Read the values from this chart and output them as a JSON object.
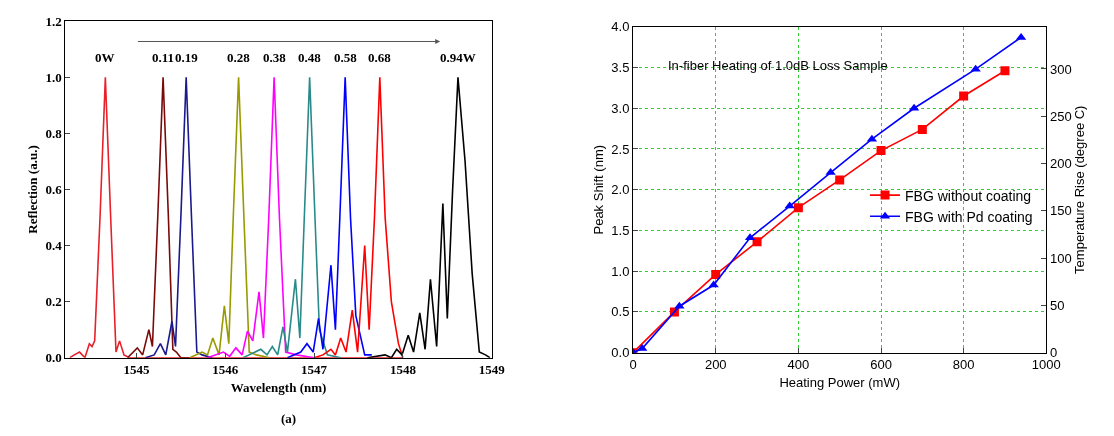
{
  "chart_data": [
    {
      "type": "line",
      "xlabel": "Wavelength (nm)",
      "ylabel": "Reflection (a.u.)",
      "xlim": [
        1544.2,
        1549
      ],
      "xticks": [
        1545,
        1546,
        1547,
        1548,
        1549
      ],
      "ylim": [
        0,
        1.2
      ],
      "yticks": [
        {
          "value": 0,
          "label": "0.0"
        },
        0.2,
        0.4,
        0.6,
        0.8,
        {
          "value": 1,
          "label": "1.0"
        },
        1.2
      ],
      "grid": false,
      "legend": false,
      "marker": "none",
      "line_style": "solid",
      "annotations": [
        {
          "text": "0W",
          "x": 1544.65,
          "y": 1.0
        },
        {
          "text": "0.11",
          "x": 1545.3,
          "y": 1.0
        },
        {
          "text": "0.19",
          "x": 1545.56,
          "y": 1.0
        },
        {
          "text": "0.28",
          "x": 1546.15,
          "y": 1.0
        },
        {
          "text": "0.38",
          "x": 1546.55,
          "y": 1.0
        },
        {
          "text": "0.48",
          "x": 1546.95,
          "y": 1.0
        },
        {
          "text": "0.58",
          "x": 1547.35,
          "y": 1.0
        },
        {
          "text": "0.68",
          "x": 1547.74,
          "y": 1.0
        },
        {
          "text": "0.94W",
          "x": 1548.62,
          "y": 1.0
        },
        "(a)"
      ],
      "series": [
        {
          "color": "#e8202a",
          "x": [
            1544.25,
            1544.3,
            1544.36,
            1544.42,
            1544.47,
            1544.5,
            1544.53,
            1544.59,
            1544.65,
            1544.71,
            1544.77,
            1544.81,
            1544.86,
            1544.92,
            1545.0,
            1548.0
          ],
          "values": [
            0,
            0.01,
            0.02,
            0,
            0.05,
            0.04,
            0.06,
            0.5,
            1.0,
            0.5,
            0.02,
            0.06,
            0.01,
            0,
            0,
            0
          ]
        },
        {
          "color": "#7a0a0a",
          "x": [
            1544.9,
            1545.01,
            1545.07,
            1545.14,
            1545.18,
            1545.24,
            1545.3,
            1545.36,
            1545.41,
            1545.45,
            1545.5,
            1545.6
          ],
          "values": [
            0,
            0.035,
            0.01,
            0.1,
            0.04,
            0.5,
            1.0,
            0.5,
            0.03,
            0.02,
            0,
            0
          ]
        },
        {
          "color": "#1a1a8c",
          "x": [
            1545.1,
            1545.2,
            1545.27,
            1545.33,
            1545.4,
            1545.44,
            1545.5,
            1545.56,
            1545.62,
            1545.68,
            1545.74,
            1545.85
          ],
          "values": [
            0,
            0.01,
            0.05,
            0.01,
            0.13,
            0.04,
            0.5,
            1.0,
            0.5,
            0.02,
            0.01,
            0
          ]
        },
        {
          "color": "#999900",
          "x": [
            1545.6,
            1545.74,
            1545.8,
            1545.86,
            1545.93,
            1545.99,
            1546.04,
            1546.09,
            1546.15,
            1546.21,
            1546.27,
            1546.35,
            1546.5
          ],
          "values": [
            0,
            0.02,
            0.01,
            0.07,
            0.01,
            0.185,
            0.05,
            0.5,
            1.0,
            0.5,
            0.02,
            0.01,
            0
          ]
        },
        {
          "color": "#ff00ff",
          "x": [
            1545.8,
            1545.98,
            1546.05,
            1546.12,
            1546.19,
            1546.25,
            1546.31,
            1546.38,
            1546.43,
            1546.49,
            1546.55,
            1546.61,
            1546.68,
            1546.8,
            1547.0
          ],
          "values": [
            0,
            0.02,
            0.005,
            0.035,
            0.01,
            0.095,
            0.06,
            0.235,
            0.07,
            0.5,
            1.0,
            0.5,
            0.02,
            0.01,
            0
          ]
        },
        {
          "color": "#2a8a8a",
          "x": [
            1546.2,
            1546.4,
            1546.47,
            1546.53,
            1546.59,
            1546.65,
            1546.7,
            1546.79,
            1546.84,
            1546.89,
            1546.95,
            1547.01,
            1547.06,
            1547.15,
            1547.3
          ],
          "values": [
            0,
            0.03,
            0.01,
            0.04,
            0.01,
            0.11,
            0.02,
            0.28,
            0.07,
            0.5,
            1.0,
            0.5,
            0.1,
            0.01,
            0
          ]
        },
        {
          "color": "#0000ff",
          "x": [
            1546.7,
            1546.85,
            1546.92,
            1546.99,
            1547.05,
            1547.1,
            1547.19,
            1547.24,
            1547.29,
            1547.35,
            1547.41,
            1547.47,
            1547.57,
            1547.65
          ],
          "values": [
            0,
            0.02,
            0.05,
            0.02,
            0.14,
            0.03,
            0.33,
            0.1,
            0.5,
            1.0,
            0.5,
            0.15,
            0.01,
            0.01
          ]
        },
        {
          "color": "#ff0000",
          "x": [
            1547.0,
            1547.1,
            1547.19,
            1547.24,
            1547.3,
            1547.36,
            1547.43,
            1547.49,
            1547.57,
            1547.62,
            1547.68,
            1547.74,
            1547.8,
            1547.87,
            1547.95,
            1548.0
          ],
          "values": [
            0,
            0.01,
            0.03,
            0.01,
            0.07,
            0.02,
            0.17,
            0.02,
            0.4,
            0.1,
            0.5,
            1.0,
            0.5,
            0.2,
            0.05,
            0
          ]
        },
        {
          "color": "#000000",
          "x": [
            1547.6,
            1547.8,
            1547.87,
            1547.93,
            1547.99,
            1548.06,
            1548.12,
            1548.19,
            1548.25,
            1548.31,
            1548.38,
            1548.45,
            1548.5,
            1548.56,
            1548.62,
            1548.7,
            1548.78,
            1548.86,
            1548.93,
            1548.98
          ],
          "values": [
            0,
            0.01,
            0,
            0.03,
            0.01,
            0.08,
            0.02,
            0.16,
            0.03,
            0.28,
            0.04,
            0.55,
            0.14,
            0.6,
            1.0,
            0.7,
            0.3,
            0.02,
            0.01,
            0
          ]
        }
      ]
    },
    {
      "type": "line",
      "xlabel": "Heating Power (mW)",
      "ylabel": "Peak Shift (nm)",
      "y2label": "Temperature Rise (degree C)",
      "xlim": [
        0,
        1000
      ],
      "xticks": [
        0,
        200,
        400,
        600,
        800,
        1000
      ],
      "ylim": [
        0,
        4.0
      ],
      "yticks": [
        {
          "value": 0,
          "label": "0.0"
        },
        0.5,
        {
          "value": 1,
          "label": "1.0"
        },
        1.5,
        {
          "value": 2,
          "label": "2.0"
        },
        2.5,
        {
          "value": 3,
          "label": "3.0"
        },
        3.5,
        {
          "value": 4,
          "label": "4.0"
        }
      ],
      "y2lim": [
        0,
        344.6
      ],
      "y2ticks": [
        0,
        50,
        100,
        150,
        200,
        250,
        300
      ],
      "grid": true,
      "legend": "right",
      "line_style": "solid",
      "annotations": [
        "In-fiber Heating of 1.0dB Loss Sample"
      ],
      "series": [
        {
          "name": "FBG without coating",
          "color": "#ff0000",
          "marker": "square",
          "x": [
            0,
            100,
            200,
            300,
            400,
            500,
            600,
            700,
            800,
            900
          ],
          "values": [
            0,
            0.5,
            0.96,
            1.36,
            1.78,
            2.12,
            2.48,
            2.74,
            3.15,
            3.46
          ]
        },
        {
          "name": "FBG with Pd coating",
          "color": "#0000ff",
          "marker": "triangle",
          "x": [
            0,
            22,
            112,
            195,
            283,
            379,
            478,
            578,
            680,
            829,
            939
          ],
          "values": [
            0,
            0.05,
            0.57,
            0.83,
            1.41,
            1.8,
            2.21,
            2.62,
            3.0,
            3.48,
            3.87
          ]
        }
      ]
    }
  ]
}
